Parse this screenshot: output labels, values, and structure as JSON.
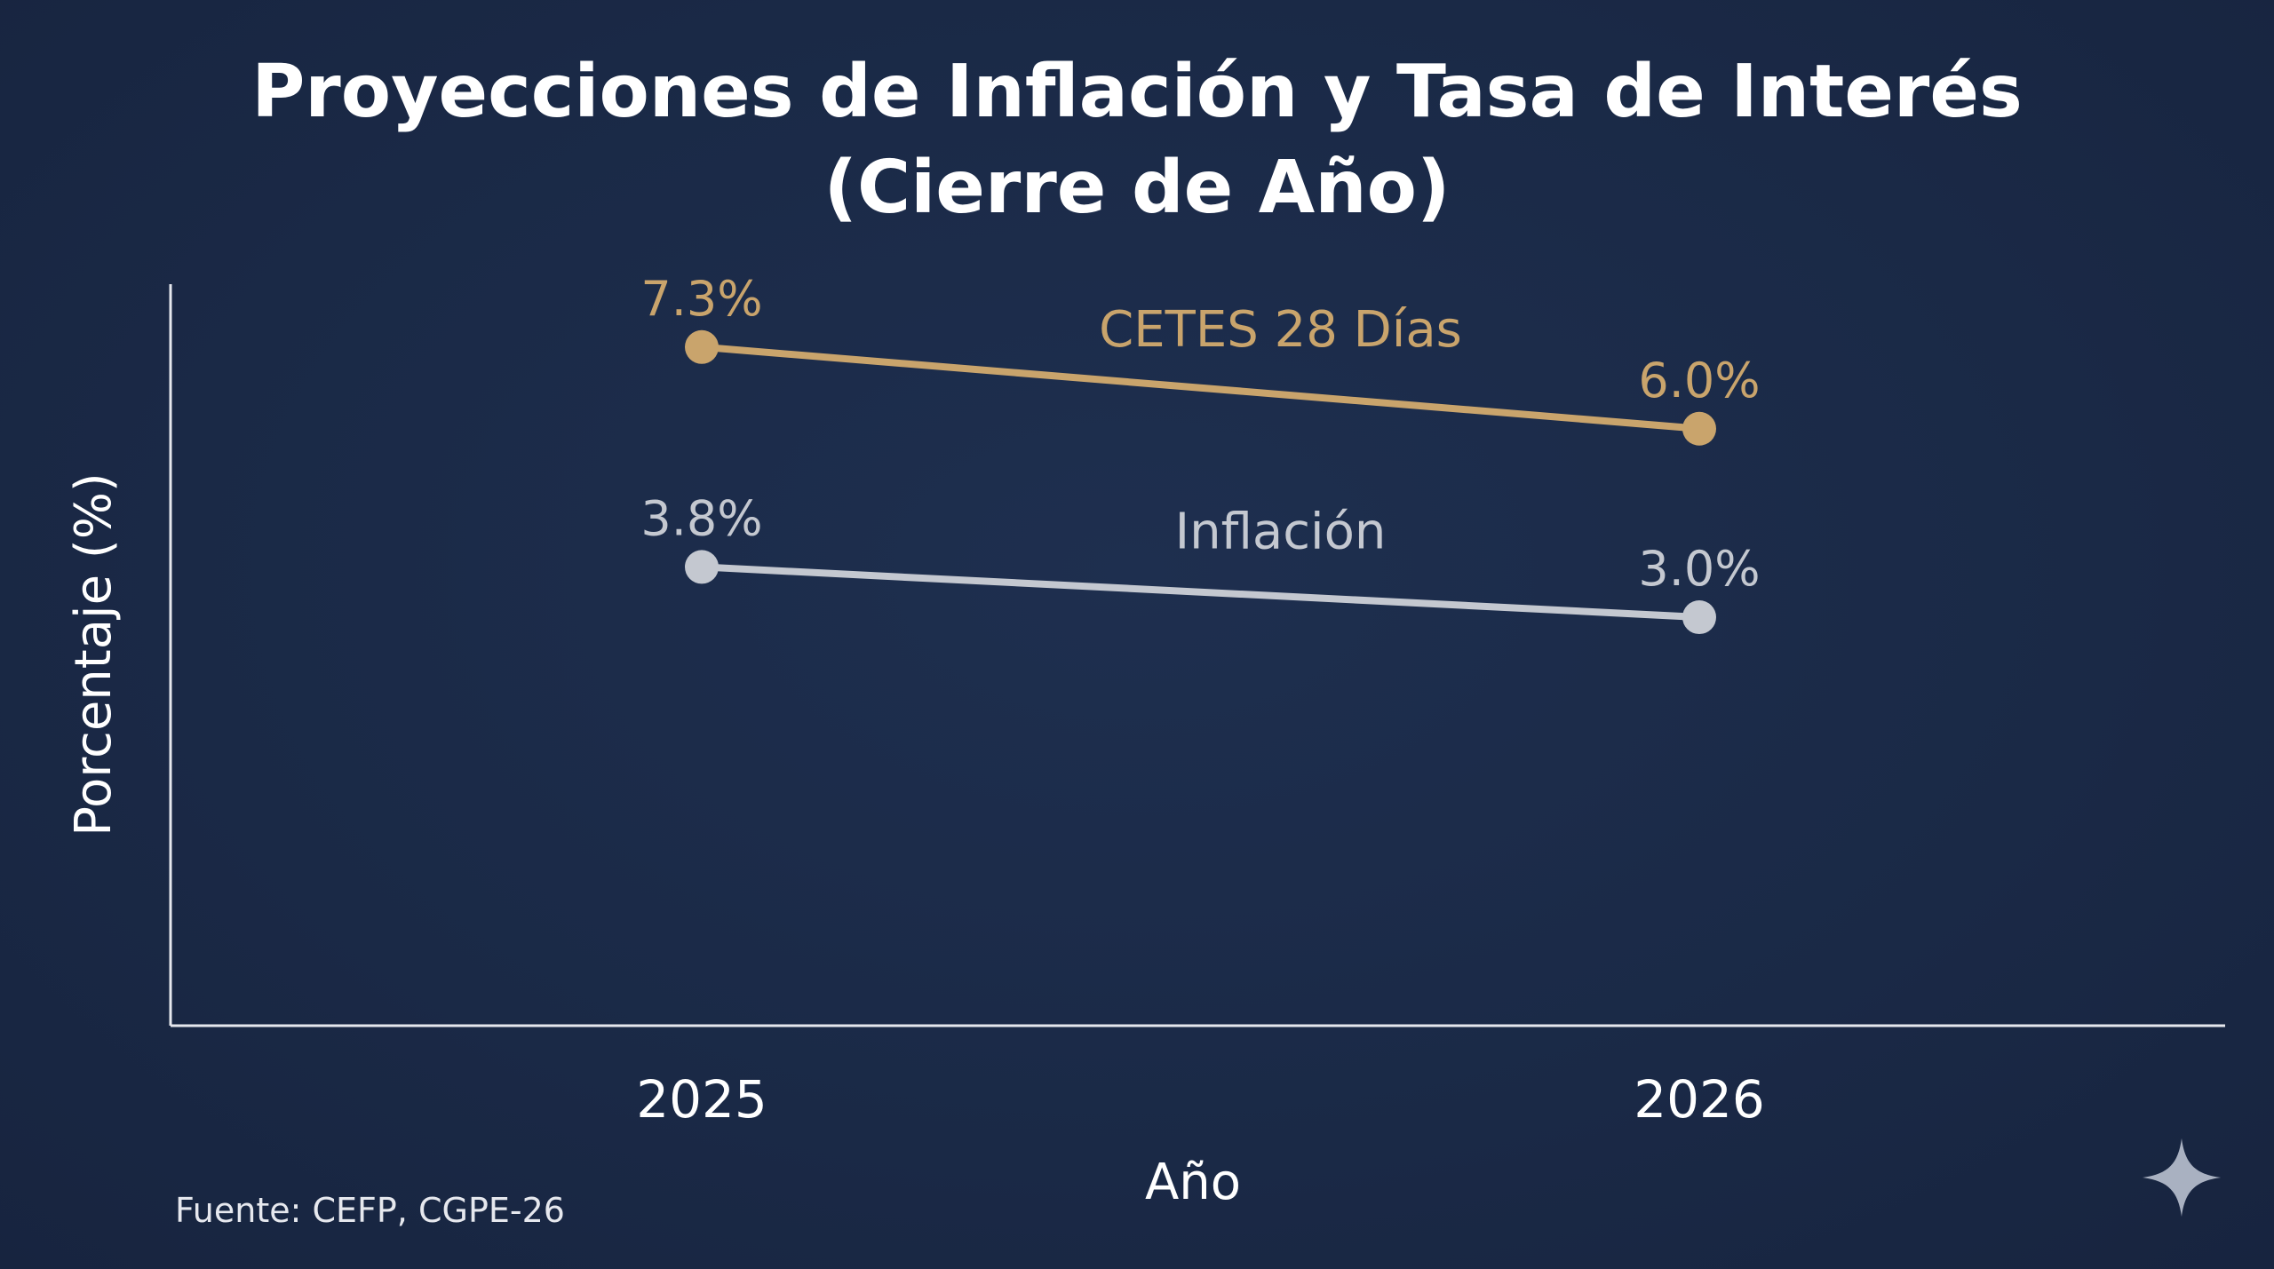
{
  "chart_data": {
    "type": "line",
    "title": "Proyecciones de Inflación y Tasa de Interés (Cierre de Año)",
    "xlabel": "Año",
    "ylabel": "Porcentaje (%)",
    "categories": [
      "2025",
      "2026"
    ],
    "series": [
      {
        "name": "CETES 28 Días",
        "values": [
          7.3,
          6.0
        ],
        "labels": [
          "7.3%",
          "6.0%"
        ],
        "color": "#c9a46c"
      },
      {
        "name": "Inflación",
        "values": [
          3.8,
          3.0
        ],
        "labels": [
          "3.8%",
          "3.0%"
        ],
        "color": "#c4c8d0"
      }
    ],
    "ylim": [
      -3.5,
      8.3
    ],
    "grid": false,
    "legend": "inline series labels"
  },
  "source": "Fuente: CEFP, CGPE-26",
  "icons": {
    "corner": "sparkle-star-icon"
  },
  "colors": {
    "background": "#1b2b48",
    "axis": "#e6e8ee",
    "text": "#ffffff"
  }
}
